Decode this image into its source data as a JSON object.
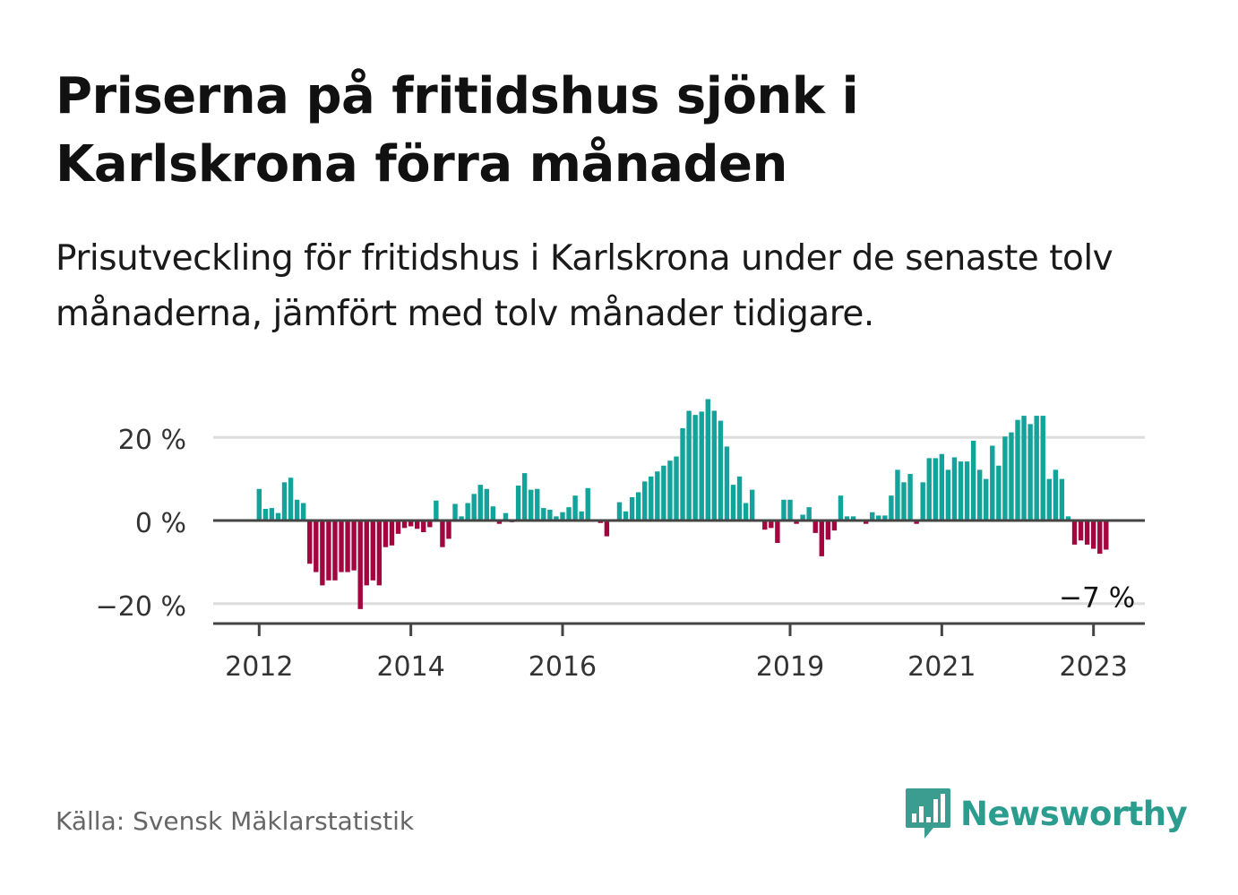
{
  "title": "Priserna på fritidshus sjönk i Karlskrona förra månaden",
  "subtitle": "Prisutveckling för fritidshus i Karlskrona under de senaste tolv månaderna, jämfört med tolv månader tidigare.",
  "source": "Källa: Svensk Mäklarstatistik",
  "logo": {
    "text": "Newsworthy",
    "icon": "newsworthy-logo-icon"
  },
  "colors": {
    "positive": "#12a39a",
    "negative": "#a3063f",
    "grid": "#dddddd",
    "axis": "#444444",
    "brand": "#2a9d8f"
  },
  "chart_data": {
    "type": "bar",
    "ylabel": "",
    "xlabel": "",
    "y_ticks": [
      {
        "value": 20,
        "label": "20 %"
      },
      {
        "value": 0,
        "label": "0 %"
      },
      {
        "value": -20,
        "label": "−20 %"
      }
    ],
    "x_ticks": [
      "2012",
      "2014",
      "2016",
      "2019",
      "2021",
      "2023"
    ],
    "ylim": [
      -25,
      30
    ],
    "grid": true,
    "annotation": {
      "text": "−7 %",
      "value": -7,
      "period": "2023-01"
    },
    "start_period": "2012-01",
    "values": [
      7.6,
      2.8,
      3.0,
      1.8,
      9.2,
      10.3,
      5.0,
      4.2,
      -10.4,
      -12.4,
      -15.6,
      -14.4,
      -14.4,
      -12.4,
      -12.4,
      -12.0,
      -21.3,
      -15.6,
      -14.4,
      -15.6,
      -6.4,
      -6.0,
      -3.2,
      -1.8,
      -1.4,
      -2.0,
      -2.8,
      -1.6,
      4.8,
      -6.4,
      -4.4,
      4.0,
      1.0,
      4.2,
      6.4,
      8.6,
      7.6,
      3.4,
      -0.8,
      1.8,
      -0.4,
      8.4,
      11.4,
      7.4,
      7.6,
      3.0,
      2.6,
      1.0,
      2.0,
      3.2,
      6.0,
      2.2,
      7.8,
      0.0,
      -0.6,
      -3.8,
      0.0,
      4.4,
      2.2,
      5.6,
      6.8,
      9.4,
      10.6,
      11.8,
      13.2,
      14.4,
      15.4,
      22.2,
      26.4,
      25.4,
      26.2,
      29.2,
      26.4,
      24.0,
      17.8,
      8.6,
      10.6,
      4.2,
      7.4,
      0.0,
      -2.2,
      -1.8,
      -5.4,
      5.0,
      5.0,
      -0.8,
      1.4,
      3.2,
      -3.0,
      -8.6,
      -4.6,
      -2.4,
      6.0,
      1.0,
      1.0,
      0.0,
      -0.8,
      2.0,
      1.2,
      1.2,
      6.0,
      12.2,
      9.2,
      11.2,
      -0.8,
      9.2,
      15.0,
      15.0,
      16.0,
      12.2,
      15.2,
      14.2,
      14.2,
      19.2,
      12.2,
      10.0,
      18.0,
      13.2,
      20.2,
      21.2,
      24.2,
      25.2,
      23.2,
      25.2,
      25.2,
      10.0,
      12.2,
      10.0,
      1.0,
      -5.8,
      -4.8,
      -5.8,
      -6.8,
      -8.0,
      -7.0
    ]
  }
}
